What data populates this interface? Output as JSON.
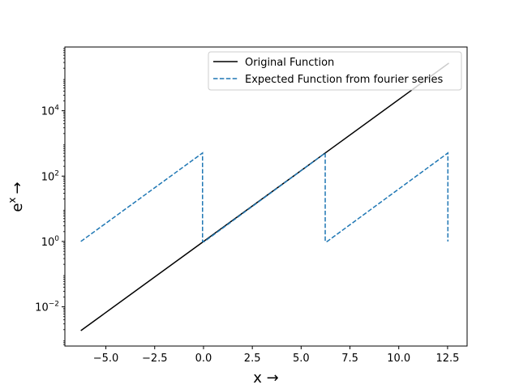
{
  "chart_data": {
    "type": "line",
    "title": "",
    "xlabel": "x →",
    "ylabel_base": "e",
    "ylabel_exp": "x",
    "ylabel_arrow": "→",
    "xlim": [
      -7.1,
      13.5
    ],
    "ylim_log10": [
      -3.2,
      5.95
    ],
    "yscale": "log",
    "x_ticks": [
      -5.0,
      -2.5,
      0.0,
      2.5,
      5.0,
      7.5,
      10.0,
      12.5
    ],
    "x_tick_labels": [
      "−5.0",
      "−2.5",
      "0.0",
      "2.5",
      "5.0",
      "7.5",
      "10.0",
      "12.5"
    ],
    "y_ticks_log10": [
      -2,
      0,
      2,
      4
    ],
    "y_tick_base": "10",
    "y_tick_exps": [
      "−2",
      "0",
      "2",
      "4"
    ],
    "grid": false,
    "legend_position": "top-right",
    "series": [
      {
        "name": "Original Function",
        "style": "solid",
        "color": "#000000",
        "x": [
          -6.283,
          12.566
        ],
        "y_log10": [
          -2.729,
          5.457
        ]
      },
      {
        "name": "Expected Function from fourier series",
        "style": "dashed",
        "color": "#1f77b4",
        "x": [
          -6.283,
          -0.05,
          -0.05,
          0.05,
          6.233,
          6.233,
          6.333,
          12.516,
          12.516
        ],
        "y_log10": [
          0.0,
          2.707,
          0.0,
          0.0,
          2.707,
          0.0,
          0.0,
          2.707,
          0.0
        ]
      }
    ]
  }
}
